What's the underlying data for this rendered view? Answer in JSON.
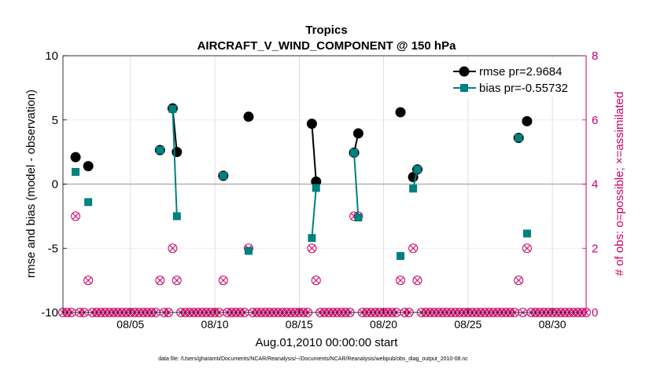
{
  "chart_data": {
    "type": "line",
    "title": "Tropics",
    "subtitle": "AIRCRAFT_V_WIND_COMPONENT @ 150 hPa",
    "xlabel": "Aug.01,2010 00:00:00 start",
    "ylabel_left": "rmse and bias (model - observation)",
    "ylabel_right": "# of obs: o=possible; ×=assimilated",
    "footnote": "data file: /Users/gharamti/Documents/NCAR/Reanalysis/~/Documents/NCAR/Reanalysis/webpub/obs_diag_output_2010-08.nc",
    "xlim": [
      1,
      32
    ],
    "ylim_left": [
      -10,
      10
    ],
    "ylim_right": [
      0,
      8
    ],
    "left_ticks": [
      10,
      5,
      0,
      -5,
      -10
    ],
    "left_tick_labels": [
      "10",
      "5",
      "0",
      "-5",
      "-10"
    ],
    "right_ticks": [
      8,
      6,
      4,
      2,
      0
    ],
    "right_tick_labels": [
      "8",
      "6",
      "4",
      "2",
      "0"
    ],
    "x_ticks": [
      5,
      10,
      15,
      20,
      25,
      30
    ],
    "x_tick_labels": [
      "08/05",
      "08/10",
      "08/15",
      "08/20",
      "08/25",
      "08/30"
    ],
    "series": [
      {
        "name": "rmse",
        "legend": "rmse pr=2.9684",
        "color": "#000000",
        "x": [
          1.75,
          2.5,
          6.75,
          7.5,
          7.75,
          10.5,
          12,
          15.75,
          16,
          18.25,
          18.5,
          21,
          21.75,
          22,
          28,
          28.5
        ],
        "y": [
          2.1,
          1.4,
          2.65,
          5.9,
          2.5,
          0.65,
          5.25,
          4.7,
          0.2,
          2.45,
          3.95,
          5.6,
          0.55,
          1.15,
          3.6,
          4.9
        ],
        "connected_pairs": [
          [
            7.5,
            7.75
          ],
          [
            15.75,
            16
          ],
          [
            18.25,
            18.5
          ],
          [
            21.75,
            22
          ]
        ]
      },
      {
        "name": "bias",
        "legend": "bias pr=-0.55732",
        "color": "#008080",
        "x": [
          1.75,
          2.5,
          6.75,
          7.5,
          7.75,
          10.5,
          12,
          15.75,
          16,
          18.25,
          18.5,
          21,
          21.75,
          22,
          28,
          28.5
        ],
        "y": [
          0.95,
          -1.4,
          2.65,
          5.85,
          -2.5,
          0.65,
          -5.2,
          -4.2,
          -0.3,
          2.45,
          -2.6,
          -5.6,
          -0.35,
          1.15,
          3.6,
          -3.85
        ],
        "connected_pairs": [
          [
            7.5,
            7.75
          ],
          [
            15.75,
            16
          ],
          [
            18.25,
            18.5
          ],
          [
            21.75,
            22
          ]
        ]
      },
      {
        "name": "obs_possible_assimilated",
        "color": "#cc0066",
        "axis": "right",
        "x": [
          1.75,
          2.5,
          6.75,
          7.5,
          7.75,
          10.5,
          12,
          15.75,
          16,
          18.25,
          18.5,
          21,
          21.75,
          22,
          28,
          28.5
        ],
        "y": [
          3,
          1,
          1,
          2,
          1,
          1,
          2,
          2,
          1,
          3,
          3,
          1,
          2,
          1,
          1,
          2
        ]
      }
    ],
    "zero_count_marks": "circle-x at 0 for every 6-hour bin without observations"
  }
}
